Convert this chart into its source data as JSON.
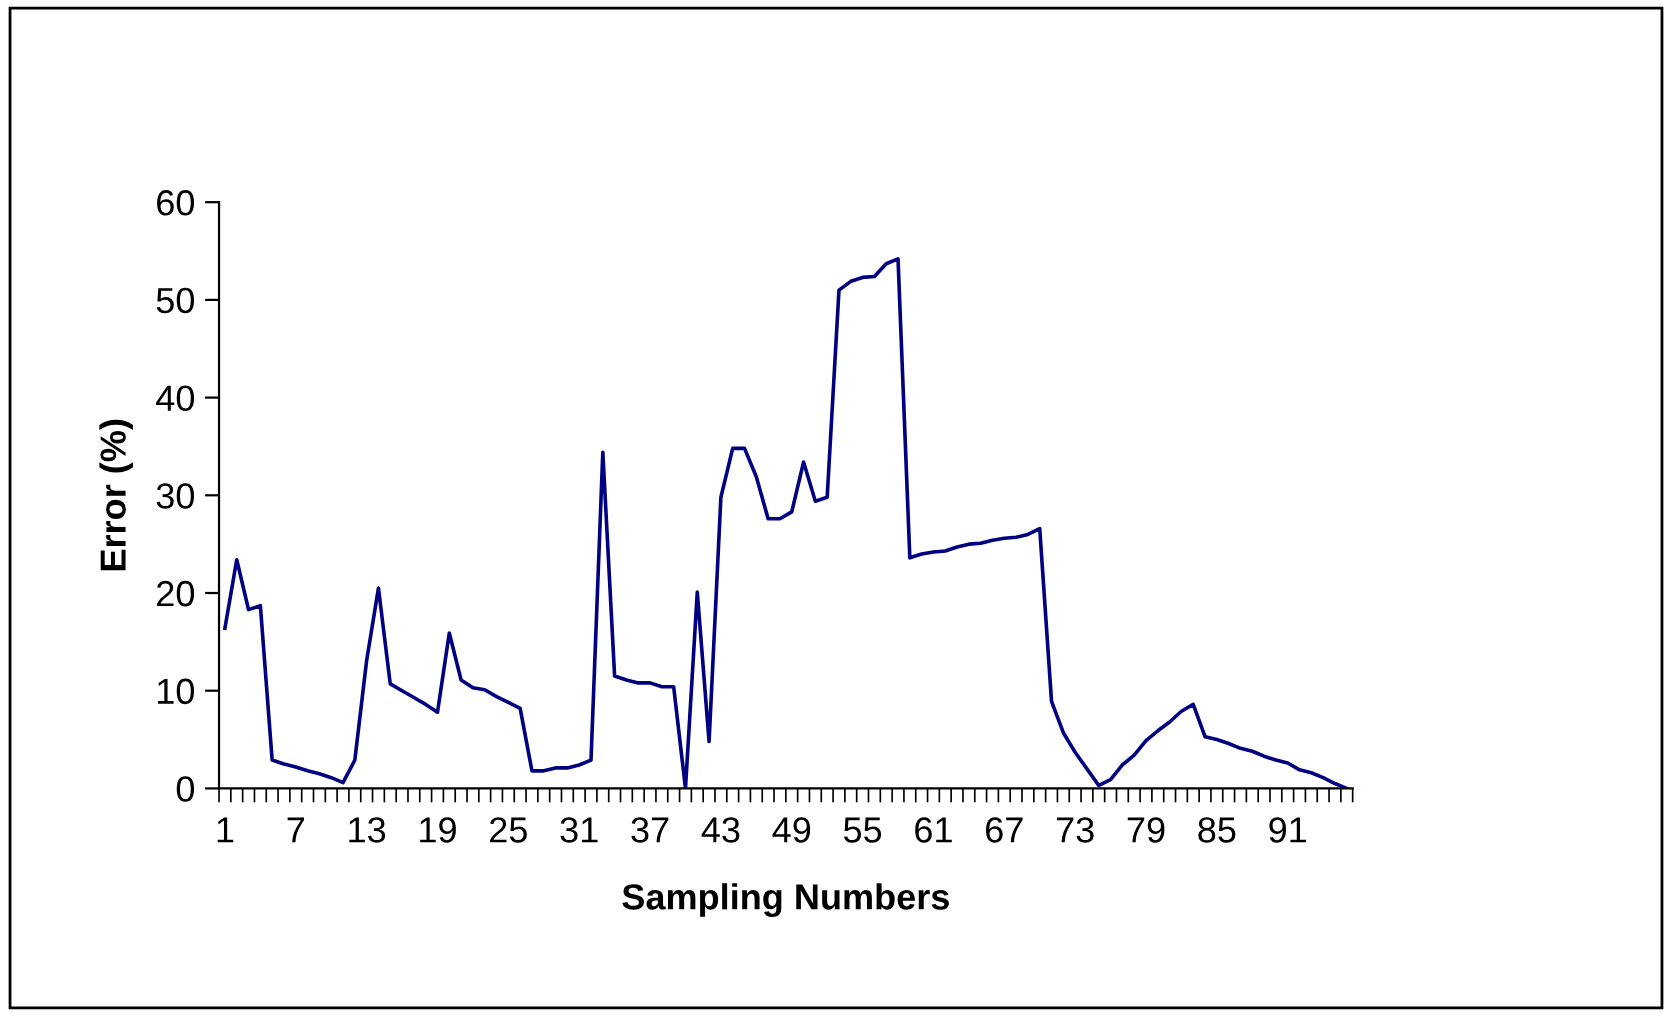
{
  "chart_data": {
    "type": "line",
    "xlabel": "Sampling Numbers",
    "ylabel": "Error (%)",
    "categories": [
      "1",
      null,
      null,
      null,
      null,
      null,
      "7",
      null,
      null,
      null,
      null,
      null,
      "13",
      null,
      null,
      null,
      null,
      null,
      "19",
      null,
      null,
      null,
      null,
      null,
      "25",
      null,
      null,
      null,
      null,
      null,
      "31",
      null,
      null,
      null,
      null,
      null,
      "37",
      null,
      null,
      null,
      null,
      null,
      "43",
      null,
      null,
      null,
      null,
      null,
      "49",
      null,
      null,
      null,
      null,
      null,
      "55",
      null,
      null,
      null,
      null,
      null,
      "61",
      null,
      null,
      null,
      null,
      null,
      "67",
      null,
      null,
      null,
      null,
      null,
      "73",
      null,
      null,
      null,
      null,
      null,
      "79",
      null,
      null,
      null,
      null,
      null,
      "85",
      null,
      null,
      null,
      null,
      null,
      "91",
      null,
      null,
      null,
      null,
      null
    ],
    "series": [
      {
        "color": "#000080",
        "values": [
          16.4,
          23.4,
          18.3,
          18.7,
          2.9,
          2.5,
          2.2,
          1.8,
          1.5,
          1.1,
          0.6,
          2.9,
          13.1,
          20.5,
          10.7,
          10.0,
          9.3,
          8.6,
          7.8,
          15.9,
          11.1,
          10.3,
          10.1,
          9.4,
          8.8,
          8.2,
          1.8,
          1.8,
          2.1,
          2.1,
          2.4,
          2.9,
          34.4,
          11.5,
          11.1,
          10.8,
          10.8,
          10.4,
          10.4,
          0,
          20.1,
          4.8,
          29.8,
          34.8,
          34.8,
          31.9,
          27.6,
          27.6,
          28.3,
          33.4,
          29.4,
          29.8,
          51.0,
          51.9,
          52.3,
          52.4,
          53.7,
          54.2,
          23.6,
          24.0,
          24.2,
          24.3,
          24.7,
          25.0,
          25.1,
          25.4,
          25.6,
          25.7,
          26.0,
          26.6,
          8.9,
          5.7,
          3.7,
          2.0,
          0.3,
          0.9,
          2.4,
          3.4,
          4.9,
          5.9,
          6.8,
          7.9,
          8.6,
          5.3,
          5.0,
          4.6,
          4.1,
          3.8,
          3.3,
          2.9,
          2.6,
          1.9,
          1.6,
          1.1,
          0.5,
          0.0
        ]
      }
    ],
    "ylim": [
      0,
      60
    ],
    "yticks": [
      0,
      10,
      20,
      30,
      40,
      50,
      60
    ],
    "grid": false,
    "legend": false,
    "marker": "none",
    "line_style": "solid"
  }
}
